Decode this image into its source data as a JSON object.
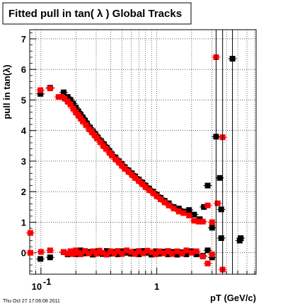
{
  "page": {
    "title": "Fitted pull in tan( λ )  Global Tracks",
    "timestamp": "Thu Oct 27 17:06:08 2011"
  },
  "chart_data": {
    "type": "scatter",
    "title": "Fitted pull in tan( λ )  Global Tracks",
    "xlabel": "pT (GeV/c)",
    "ylabel": "pull in tan(λ)",
    "xscale": "log",
    "xlim": [
      0.08,
      7.2
    ],
    "ylim": [
      -0.7,
      7.3
    ],
    "grid": true,
    "x_tick_labels": [
      {
        "value": 0.1,
        "base": "10",
        "exp": "-1"
      },
      {
        "value": 1,
        "base": "1",
        "exp": ""
      }
    ],
    "y_ticks": [
      0,
      1,
      2,
      3,
      4,
      5,
      6,
      7
    ],
    "colors": {
      "series_a": "#000000",
      "series_b": "#ff0000",
      "grid": "#000000"
    },
    "series": [
      {
        "name": "",
        "color": "#000000",
        "points": [
          [
            0.099,
            5.2
          ],
          [
            0.12,
            5.4
          ],
          [
            0.157,
            5.25
          ],
          [
            0.17,
            5.1
          ],
          [
            0.18,
            5.0
          ],
          [
            0.19,
            4.88
          ],
          [
            0.2,
            4.75
          ],
          [
            0.21,
            4.63
          ],
          [
            0.22,
            4.52
          ],
          [
            0.23,
            4.42
          ],
          [
            0.24,
            4.32
          ],
          [
            0.25,
            4.22
          ],
          [
            0.265,
            4.1
          ],
          [
            0.28,
            3.98
          ],
          [
            0.295,
            3.88
          ],
          [
            0.31,
            3.77
          ],
          [
            0.33,
            3.66
          ],
          [
            0.35,
            3.55
          ],
          [
            0.37,
            3.44
          ],
          [
            0.39,
            3.33
          ],
          [
            0.41,
            3.22
          ],
          [
            0.44,
            3.12
          ],
          [
            0.47,
            3.0
          ],
          [
            0.5,
            2.9
          ],
          [
            0.53,
            2.8
          ],
          [
            0.57,
            2.7
          ],
          [
            0.61,
            2.6
          ],
          [
            0.65,
            2.5
          ],
          [
            0.7,
            2.4
          ],
          [
            0.75,
            2.3
          ],
          [
            0.8,
            2.2
          ],
          [
            0.86,
            2.1
          ],
          [
            0.93,
            2.0
          ],
          [
            1.0,
            1.9
          ],
          [
            1.08,
            1.8
          ],
          [
            1.17,
            1.7
          ],
          [
            1.27,
            1.62
          ],
          [
            1.4,
            1.5
          ],
          [
            1.55,
            1.45
          ],
          [
            1.7,
            1.35
          ],
          [
            1.9,
            1.4
          ],
          [
            2.1,
            1.25
          ],
          [
            2.35,
            1.1
          ],
          [
            2.55,
            1.5
          ],
          [
            2.75,
            2.2
          ],
          [
            3.0,
            0.82
          ],
          [
            3.25,
            3.8
          ],
          [
            3.6,
            1.42
          ],
          [
            4.5,
            6.35
          ],
          [
            5.2,
            0.4
          ],
          [
            5.3,
            0.48
          ],
          [
            3.5,
            2.45
          ],
          [
            0.099,
            -0.2
          ],
          [
            0.12,
            -0.15
          ],
          [
            0.157,
            0.02
          ],
          [
            0.17,
            -0.05
          ],
          [
            0.18,
            0.05
          ],
          [
            0.19,
            0.0
          ],
          [
            0.2,
            -0.05
          ],
          [
            0.21,
            0.05
          ],
          [
            0.22,
            0.08
          ],
          [
            0.24,
            -0.02
          ],
          [
            0.26,
            0.03
          ],
          [
            0.28,
            -0.06
          ],
          [
            0.3,
            0.05
          ],
          [
            0.32,
            0.0
          ],
          [
            0.34,
            -0.04
          ],
          [
            0.37,
            0.06
          ],
          [
            0.4,
            -0.03
          ],
          [
            0.43,
            0.03
          ],
          [
            0.46,
            -0.05
          ],
          [
            0.5,
            0.05
          ],
          [
            0.55,
            0.0
          ],
          [
            0.6,
            -0.03
          ],
          [
            0.65,
            0.04
          ],
          [
            0.7,
            -0.05
          ],
          [
            0.76,
            0.06
          ],
          [
            0.83,
            0.0
          ],
          [
            0.9,
            -0.06
          ],
          [
            0.98,
            0.05
          ],
          [
            1.05,
            -0.03
          ],
          [
            1.15,
            0.04
          ],
          [
            1.25,
            -0.05
          ],
          [
            1.35,
            0.03
          ],
          [
            1.5,
            -0.06
          ],
          [
            1.65,
            0.02
          ],
          [
            1.8,
            -0.05
          ],
          [
            2.0,
            0.05
          ],
          [
            2.2,
            -0.05
          ],
          [
            2.5,
            -0.1
          ],
          [
            2.75,
            0.08
          ],
          [
            3.0,
            -0.15
          ],
          [
            3.6,
            0.48
          ]
        ]
      },
      {
        "name": "",
        "color": "#ff0000",
        "points": [
          [
            0.081,
            0.65
          ],
          [
            0.099,
            5.32
          ],
          [
            0.12,
            5.38
          ],
          [
            0.142,
            5.1
          ],
          [
            0.15,
            5.1
          ],
          [
            0.16,
            5.05
          ],
          [
            0.17,
            4.95
          ],
          [
            0.18,
            4.85
          ],
          [
            0.19,
            4.72
          ],
          [
            0.2,
            4.6
          ],
          [
            0.21,
            4.5
          ],
          [
            0.22,
            4.4
          ],
          [
            0.23,
            4.3
          ],
          [
            0.245,
            4.18
          ],
          [
            0.26,
            4.05
          ],
          [
            0.275,
            3.95
          ],
          [
            0.29,
            3.85
          ],
          [
            0.305,
            3.74
          ],
          [
            0.325,
            3.62
          ],
          [
            0.345,
            3.5
          ],
          [
            0.365,
            3.4
          ],
          [
            0.39,
            3.28
          ],
          [
            0.41,
            3.18
          ],
          [
            0.44,
            3.06
          ],
          [
            0.47,
            2.96
          ],
          [
            0.5,
            2.85
          ],
          [
            0.53,
            2.75
          ],
          [
            0.57,
            2.65
          ],
          [
            0.61,
            2.55
          ],
          [
            0.65,
            2.45
          ],
          [
            0.7,
            2.35
          ],
          [
            0.75,
            2.25
          ],
          [
            0.8,
            2.15
          ],
          [
            0.86,
            2.05
          ],
          [
            0.93,
            1.95
          ],
          [
            1.0,
            1.85
          ],
          [
            1.08,
            1.75
          ],
          [
            1.17,
            1.65
          ],
          [
            1.27,
            1.55
          ],
          [
            1.4,
            1.45
          ],
          [
            1.55,
            1.35
          ],
          [
            1.7,
            1.3
          ],
          [
            1.9,
            1.22
          ],
          [
            2.1,
            1.05
          ],
          [
            2.3,
            1.02
          ],
          [
            2.5,
            1.02
          ],
          [
            2.75,
            1.55
          ],
          [
            3.0,
            1.0
          ],
          [
            3.25,
            6.4
          ],
          [
            3.35,
            1.62
          ],
          [
            3.7,
            3.78
          ],
          [
            0.081,
            0.0
          ],
          [
            0.1,
            0.03
          ],
          [
            0.12,
            0.08
          ],
          [
            0.157,
            0.03
          ],
          [
            0.17,
            -0.02
          ],
          [
            0.18,
            0.05
          ],
          [
            0.19,
            -0.04
          ],
          [
            0.2,
            0.08
          ],
          [
            0.21,
            0.0
          ],
          [
            0.22,
            -0.05
          ],
          [
            0.24,
            0.06
          ],
          [
            0.26,
            -0.02
          ],
          [
            0.28,
            0.05
          ],
          [
            0.3,
            -0.03
          ],
          [
            0.32,
            0.07
          ],
          [
            0.34,
            0.0
          ],
          [
            0.37,
            -0.06
          ],
          [
            0.4,
            0.05
          ],
          [
            0.43,
            -0.02
          ],
          [
            0.46,
            0.06
          ],
          [
            0.5,
            -0.04
          ],
          [
            0.55,
            0.08
          ],
          [
            0.6,
            0.03
          ],
          [
            0.65,
            -0.04
          ],
          [
            0.7,
            0.06
          ],
          [
            0.76,
            -0.02
          ],
          [
            0.83,
            0.07
          ],
          [
            0.9,
            0.02
          ],
          [
            0.98,
            -0.05
          ],
          [
            1.05,
            0.05
          ],
          [
            1.15,
            -0.02
          ],
          [
            1.25,
            0.06
          ],
          [
            1.35,
            -0.04
          ],
          [
            1.5,
            0.05
          ],
          [
            1.65,
            -0.03
          ],
          [
            1.8,
            0.08
          ],
          [
            2.0,
            0.0
          ],
          [
            2.2,
            0.05
          ],
          [
            2.5,
            -0.12
          ],
          [
            2.75,
            -0.35
          ],
          [
            3.0,
            -0.05
          ],
          [
            3.7,
            -0.55
          ]
        ]
      }
    ]
  }
}
